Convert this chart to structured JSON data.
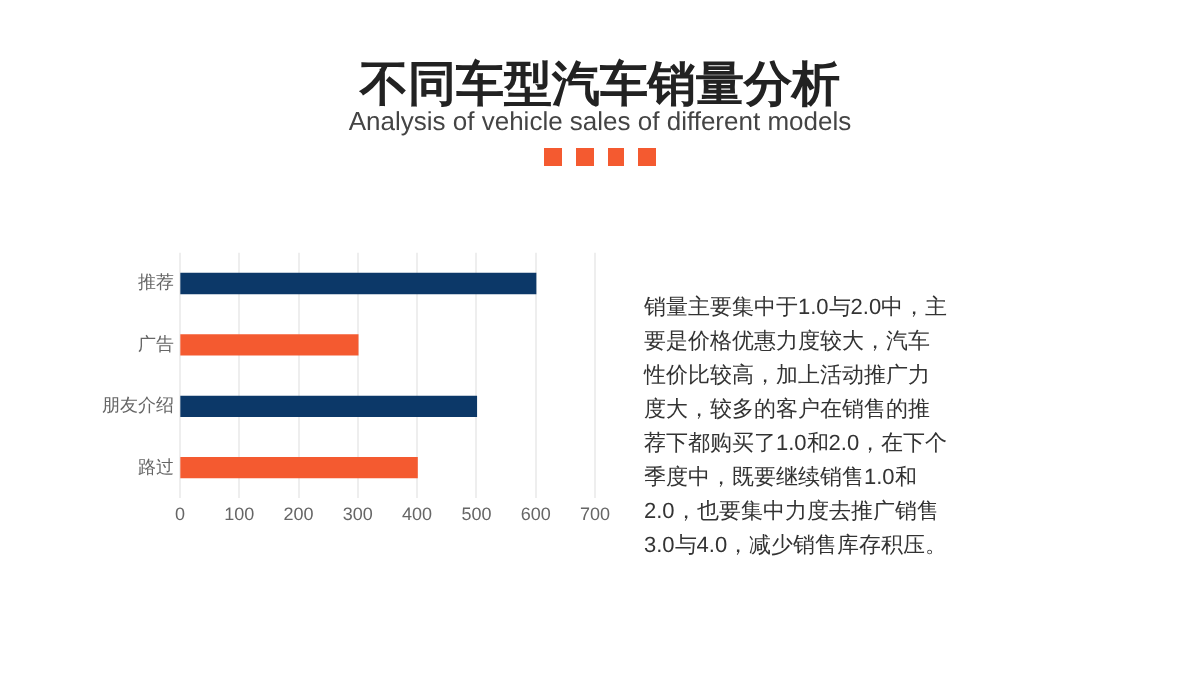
{
  "chart_data": {
    "type": "bar",
    "orientation": "horizontal",
    "title": "不同车型汽车销量分析",
    "subtitle": "Analysis of vehicle sales of different models",
    "categories": [
      "推荐",
      "广告",
      "朋友介绍",
      "路过"
    ],
    "values": [
      600,
      300,
      500,
      400
    ],
    "colors": [
      "#0c3868",
      "#f45a30",
      "#0c3868",
      "#f45a30"
    ],
    "xlim": [
      0,
      700
    ],
    "xticks": [
      0,
      100,
      200,
      300,
      400,
      500,
      600,
      700
    ],
    "grid": "x",
    "annotations": [
      "销量主要集中于1.0与2.0中，主要是价格优惠力度较大，汽车性价比较高，加上活动推广力度大，较多的客户在销售的推荐下都购买了1.0和2.0，在下个季度中，既要继续销售1.0和2.0，也要集中力度去推广销售3.0与4.0，减少销售库存积压。"
    ]
  }
}
